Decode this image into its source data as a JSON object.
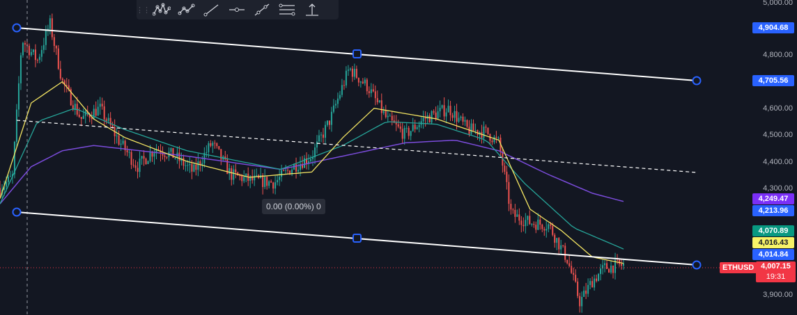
{
  "toolbar": {
    "tools": [
      {
        "name": "elliott-wave-icon"
      },
      {
        "name": "pattern-icon"
      },
      {
        "name": "trendline-icon"
      },
      {
        "name": "horizontal-ray-icon"
      },
      {
        "name": "extended-line-icon"
      },
      {
        "name": "parallel-channel-icon"
      },
      {
        "name": "vertical-arrow-icon"
      }
    ]
  },
  "axis": {
    "ticks": [
      "5,000.00",
      "4,800.00",
      "4,600.00",
      "4,500.00",
      "4,400.00",
      "4,300.00",
      "3,900.00"
    ]
  },
  "price_tags": {
    "channel_top_left": "4,904.68",
    "channel_top_right": "4,705.56",
    "ma_purple": "4,249.47",
    "channel_bottom_left": "4,213.96",
    "ma_green": "4,070.89",
    "ma_yellow": "4,016.43",
    "channel_bottom_right": "4,014.84"
  },
  "symbol": "ETHUSD",
  "last_price": "4,007.15",
  "countdown": "19:31",
  "measure_tooltip": "0.00 (0.00%) 0",
  "colors": {
    "background": "#131722",
    "up": "#26a69a",
    "down": "#ef5350",
    "ma_yellow": "#f5e663",
    "ma_green": "#26a69a",
    "ma_purple": "#7b4cdc",
    "channel": "#ffffff",
    "handle": "#2962ff",
    "tag_blue": "#2962ff",
    "tag_purple": "#7b2ff7",
    "tag_green": "#089981",
    "tag_yellow": "#f7f367",
    "tag_red": "#f23645"
  },
  "chart_data": {
    "type": "candlestick",
    "y_scale_labels": [
      "5,000.00",
      "4,800.00",
      "4,600.00",
      "4,500.00",
      "4,400.00",
      "4,300.00",
      "3,900.00"
    ],
    "price_path": [
      [
        0,
        4300
      ],
      [
        0.02,
        4340
      ],
      [
        0.035,
        4860
      ],
      [
        0.06,
        4780
      ],
      [
        0.08,
        4920
      ],
      [
        0.1,
        4700
      ],
      [
        0.13,
        4560
      ],
      [
        0.16,
        4600
      ],
      [
        0.19,
        4480
      ],
      [
        0.22,
        4380
      ],
      [
        0.25,
        4450
      ],
      [
        0.28,
        4420
      ],
      [
        0.31,
        4360
      ],
      [
        0.34,
        4470
      ],
      [
        0.37,
        4350
      ],
      [
        0.4,
        4330
      ],
      [
        0.44,
        4320
      ],
      [
        0.47,
        4380
      ],
      [
        0.5,
        4420
      ],
      [
        0.53,
        4560
      ],
      [
        0.56,
        4750
      ],
      [
        0.59,
        4680
      ],
      [
        0.62,
        4560
      ],
      [
        0.65,
        4500
      ],
      [
        0.68,
        4560
      ],
      [
        0.72,
        4600
      ],
      [
        0.75,
        4520
      ],
      [
        0.78,
        4510
      ],
      [
        0.8,
        4470
      ],
      [
        0.82,
        4200
      ],
      [
        0.85,
        4170
      ],
      [
        0.88,
        4160
      ],
      [
        0.91,
        4030
      ],
      [
        0.93,
        3870
      ],
      [
        0.95,
        3950
      ],
      [
        0.97,
        4000
      ],
      [
        1,
        4010
      ]
    ],
    "ma_yellow_path": [
      [
        0,
        4260
      ],
      [
        0.05,
        4620
      ],
      [
        0.1,
        4700
      ],
      [
        0.15,
        4560
      ],
      [
        0.2,
        4490
      ],
      [
        0.3,
        4400
      ],
      [
        0.4,
        4340
      ],
      [
        0.5,
        4360
      ],
      [
        0.55,
        4490
      ],
      [
        0.6,
        4600
      ],
      [
        0.7,
        4560
      ],
      [
        0.8,
        4480
      ],
      [
        0.85,
        4220
      ],
      [
        0.9,
        4140
      ],
      [
        0.95,
        4040
      ],
      [
        1,
        4016
      ]
    ],
    "ma_green_path": [
      [
        0,
        4240
      ],
      [
        0.06,
        4550
      ],
      [
        0.12,
        4600
      ],
      [
        0.2,
        4520
      ],
      [
        0.3,
        4440
      ],
      [
        0.45,
        4370
      ],
      [
        0.55,
        4460
      ],
      [
        0.62,
        4550
      ],
      [
        0.7,
        4540
      ],
      [
        0.78,
        4480
      ],
      [
        0.84,
        4320
      ],
      [
        0.92,
        4150
      ],
      [
        1,
        4070
      ]
    ],
    "ma_purple_path": [
      [
        0,
        4240
      ],
      [
        0.05,
        4380
      ],
      [
        0.1,
        4440
      ],
      [
        0.15,
        4460
      ],
      [
        0.3,
        4420
      ],
      [
        0.45,
        4370
      ],
      [
        0.55,
        4420
      ],
      [
        0.65,
        4470
      ],
      [
        0.73,
        4480
      ],
      [
        0.8,
        4440
      ],
      [
        0.88,
        4350
      ],
      [
        0.95,
        4280
      ],
      [
        1,
        4249
      ]
    ]
  }
}
